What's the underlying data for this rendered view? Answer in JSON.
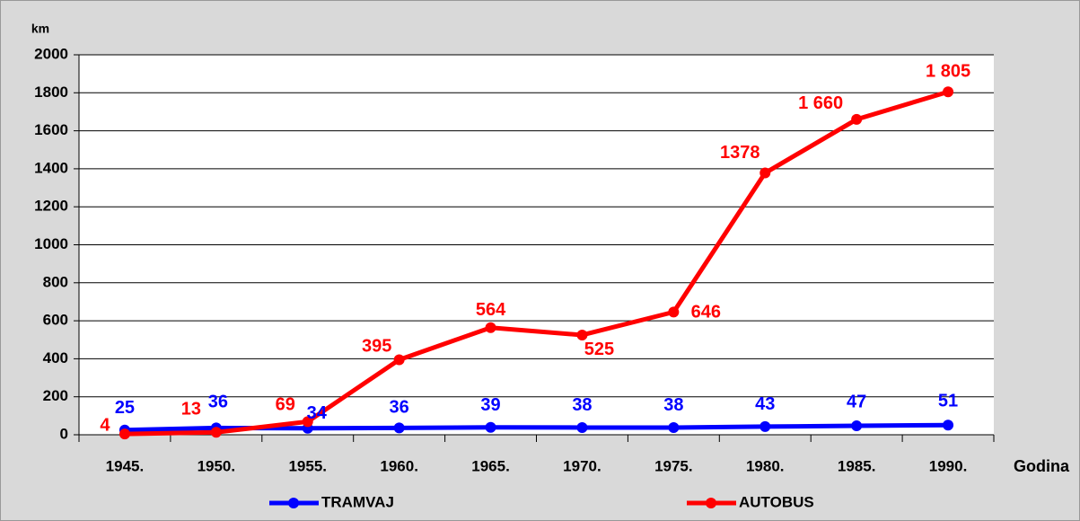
{
  "chart_data": {
    "type": "line",
    "y_label": "km",
    "x_label": "Godina",
    "categories": [
      "1945.",
      "1950.",
      "1955.",
      "1960.",
      "1965.",
      "1970.",
      "1975.",
      "1980.",
      "1985.",
      "1990."
    ],
    "series": [
      {
        "name": "TRAMVAJ",
        "color": "#0000ff",
        "values": [
          25,
          36,
          34,
          36,
          39,
          38,
          38,
          43,
          47,
          51
        ]
      },
      {
        "name": "AUTOBUS",
        "color": "#ff0000",
        "values": [
          4,
          13,
          69,
          395,
          564,
          525,
          646,
          1378,
          1660,
          1805
        ],
        "value_labels": [
          "4",
          "13",
          "69",
          "395",
          "564",
          "525",
          "646",
          "1378",
          "1 660",
          "1 805"
        ]
      }
    ],
    "ylim": [
      0,
      2000
    ],
    "yticks": [
      0,
      200,
      400,
      600,
      800,
      1000,
      1200,
      1400,
      1600,
      1800,
      2000
    ],
    "grid": true
  }
}
